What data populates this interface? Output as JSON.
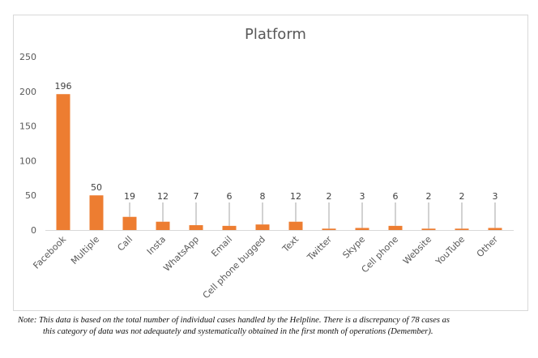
{
  "chart_data": {
    "type": "bar",
    "title": "Platform",
    "xlabel": "",
    "ylabel": "",
    "ylim": [
      0,
      250
    ],
    "yticks": [
      0,
      50,
      100,
      150,
      200,
      250
    ],
    "grid": false,
    "categories": [
      "Facebook",
      "Multiple",
      "Call",
      "Insta",
      "WhatsApp",
      "Email",
      "Cell phone bugged",
      "Text",
      "Twitter",
      "Skype",
      "Cell phone",
      "Website",
      "YouTube",
      "Other"
    ],
    "values": [
      196,
      50,
      19,
      12,
      7,
      6,
      8,
      12,
      2,
      3,
      6,
      2,
      2,
      3
    ],
    "bar_color": "#ED7D31"
  },
  "note": {
    "line1": "Note: This data is based on the total number of individual cases handled by the Helpline. There is a discrepancy of 78 cases as",
    "line2": "this category of data was not adequately and systematically obtained in the first month of operations (Demember)."
  }
}
